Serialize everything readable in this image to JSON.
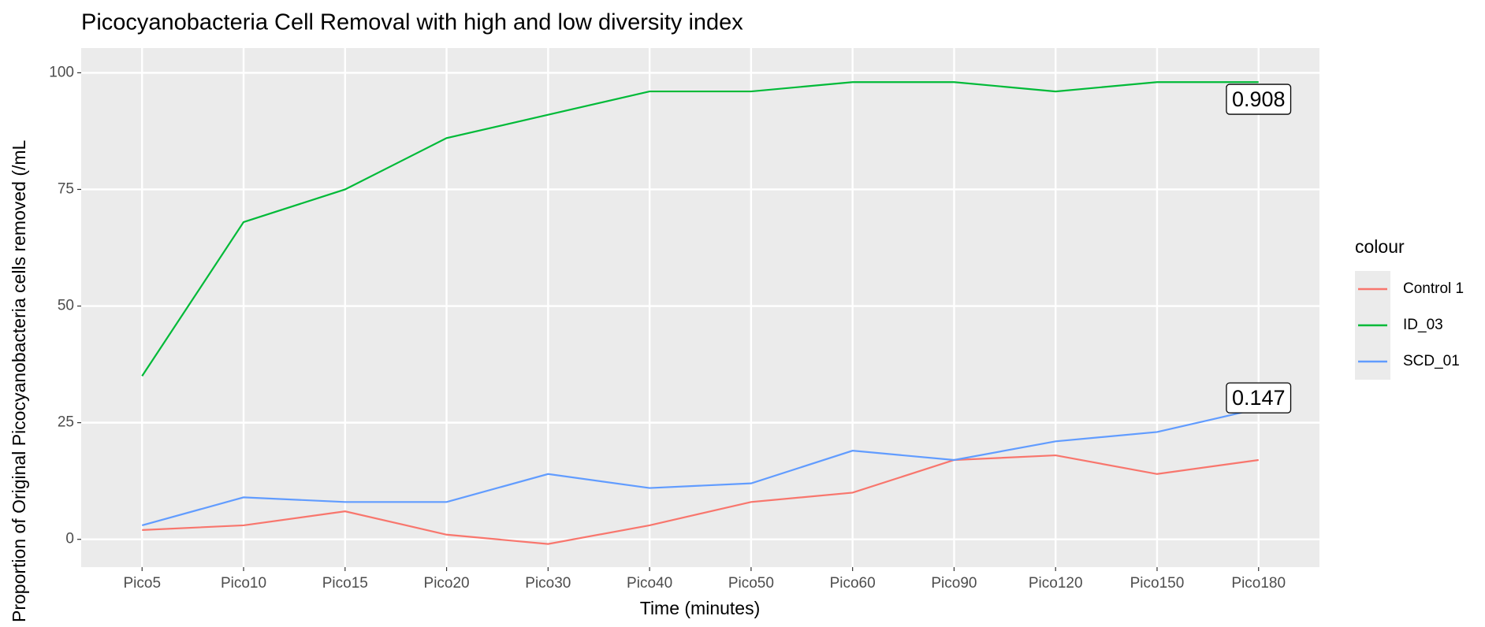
{
  "chart_data": {
    "type": "line",
    "title": "Picocyanobacteria Cell Removal with high and low diversity index",
    "x_label": "Time (minutes)",
    "y_label": "Proportion of Original Picocyanobacteria cells removed (/mL",
    "categories": [
      "Pico5",
      "Pico10",
      "Pico15",
      "Pico20",
      "Pico30",
      "Pico40",
      "Pico50",
      "Pico60",
      "Pico90",
      "Pico120",
      "Pico150",
      "Pico180"
    ],
    "series": [
      {
        "name": "Control 1",
        "color": "#f8766d",
        "values": [
          2,
          3,
          6,
          1,
          -1,
          3,
          8,
          10,
          17,
          18,
          14,
          17
        ]
      },
      {
        "name": "ID_03",
        "color": "#00ba38",
        "values": [
          35,
          68,
          75,
          86,
          91,
          96,
          96,
          98,
          98,
          96,
          98,
          98
        ]
      },
      {
        "name": "SCD_01",
        "color": "#619cff",
        "values": [
          3,
          9,
          8,
          8,
          14,
          11,
          12,
          19,
          17,
          21,
          23,
          28
        ]
      }
    ],
    "annotations": [
      {
        "text": "0.908",
        "x": "Pico180",
        "y": 94
      },
      {
        "text": "0.147",
        "x": "Pico180",
        "y": 30
      }
    ],
    "legend_title": "colour",
    "ylim": [
      -5.96,
      105.3
    ],
    "yticks": [
      0,
      25,
      50,
      75,
      100
    ],
    "grid": true
  }
}
